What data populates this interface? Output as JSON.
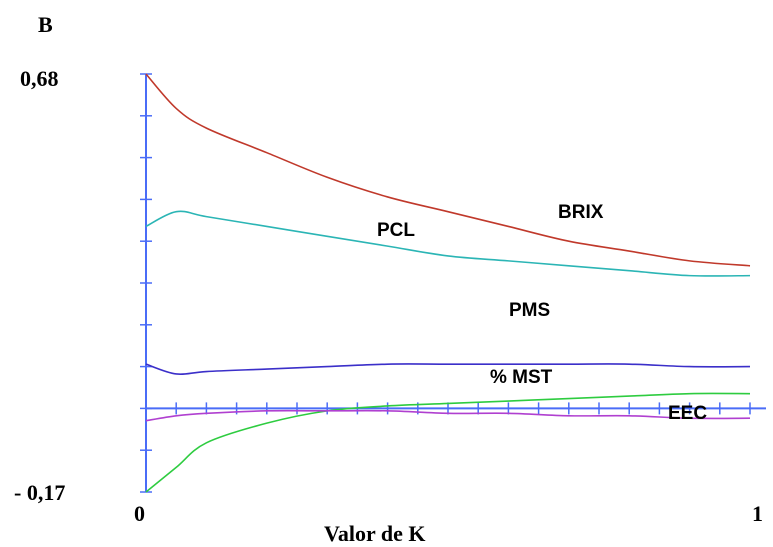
{
  "chart_data": {
    "type": "line",
    "title": "B",
    "xlabel": "Valor de K",
    "ylabel": "",
    "xlim": [
      0,
      1
    ],
    "ylim": [
      -0.17,
      0.68
    ],
    "x_tick_labels": [
      "0",
      "1"
    ],
    "y_tick_labels": [
      "0,68",
      "- 0,17"
    ],
    "grid": false,
    "legend": "inline labels",
    "colors": {
      "BRIX": "#c0392b",
      "PCL": "#2bb5b5",
      "PMS": "#3b2fc9",
      "% MST": "#2ecc40",
      "EEC": "#b040d0",
      "axis": "#4a6cf7"
    },
    "x": [
      0,
      0.05,
      0.1,
      0.2,
      0.3,
      0.4,
      0.5,
      0.6,
      0.7,
      0.8,
      0.9,
      1.0
    ],
    "series": [
      {
        "name": "BRIX",
        "values": [
          0.68,
          0.61,
          0.57,
          0.52,
          0.47,
          0.43,
          0.4,
          0.37,
          0.34,
          0.32,
          0.3,
          0.29
        ]
      },
      {
        "name": "PCL",
        "values": [
          0.37,
          0.4,
          0.39,
          0.37,
          0.35,
          0.33,
          0.31,
          0.3,
          0.29,
          0.28,
          0.27,
          0.27
        ]
      },
      {
        "name": "PMS",
        "values": [
          0.09,
          0.07,
          0.075,
          0.08,
          0.085,
          0.09,
          0.09,
          0.09,
          0.09,
          0.09,
          0.085,
          0.085
        ]
      },
      {
        "name": "% MST",
        "values": [
          -0.17,
          -0.12,
          -0.07,
          -0.03,
          -0.005,
          0.005,
          0.01,
          0.015,
          0.02,
          0.025,
          0.03,
          0.03
        ]
      },
      {
        "name": "EEC",
        "values": [
          -0.025,
          -0.015,
          -0.01,
          -0.005,
          -0.005,
          -0.005,
          -0.01,
          -0.01,
          -0.015,
          -0.015,
          -0.02,
          -0.02
        ]
      }
    ],
    "annotations": [
      {
        "text": "BRIX",
        "series": "BRIX"
      },
      {
        "text": "PCL",
        "series": "PCL"
      },
      {
        "text": "PMS",
        "series": "PMS"
      },
      {
        "text": "% MST",
        "series": "% MST"
      },
      {
        "text": "EEC",
        "series": "EEC"
      }
    ]
  }
}
